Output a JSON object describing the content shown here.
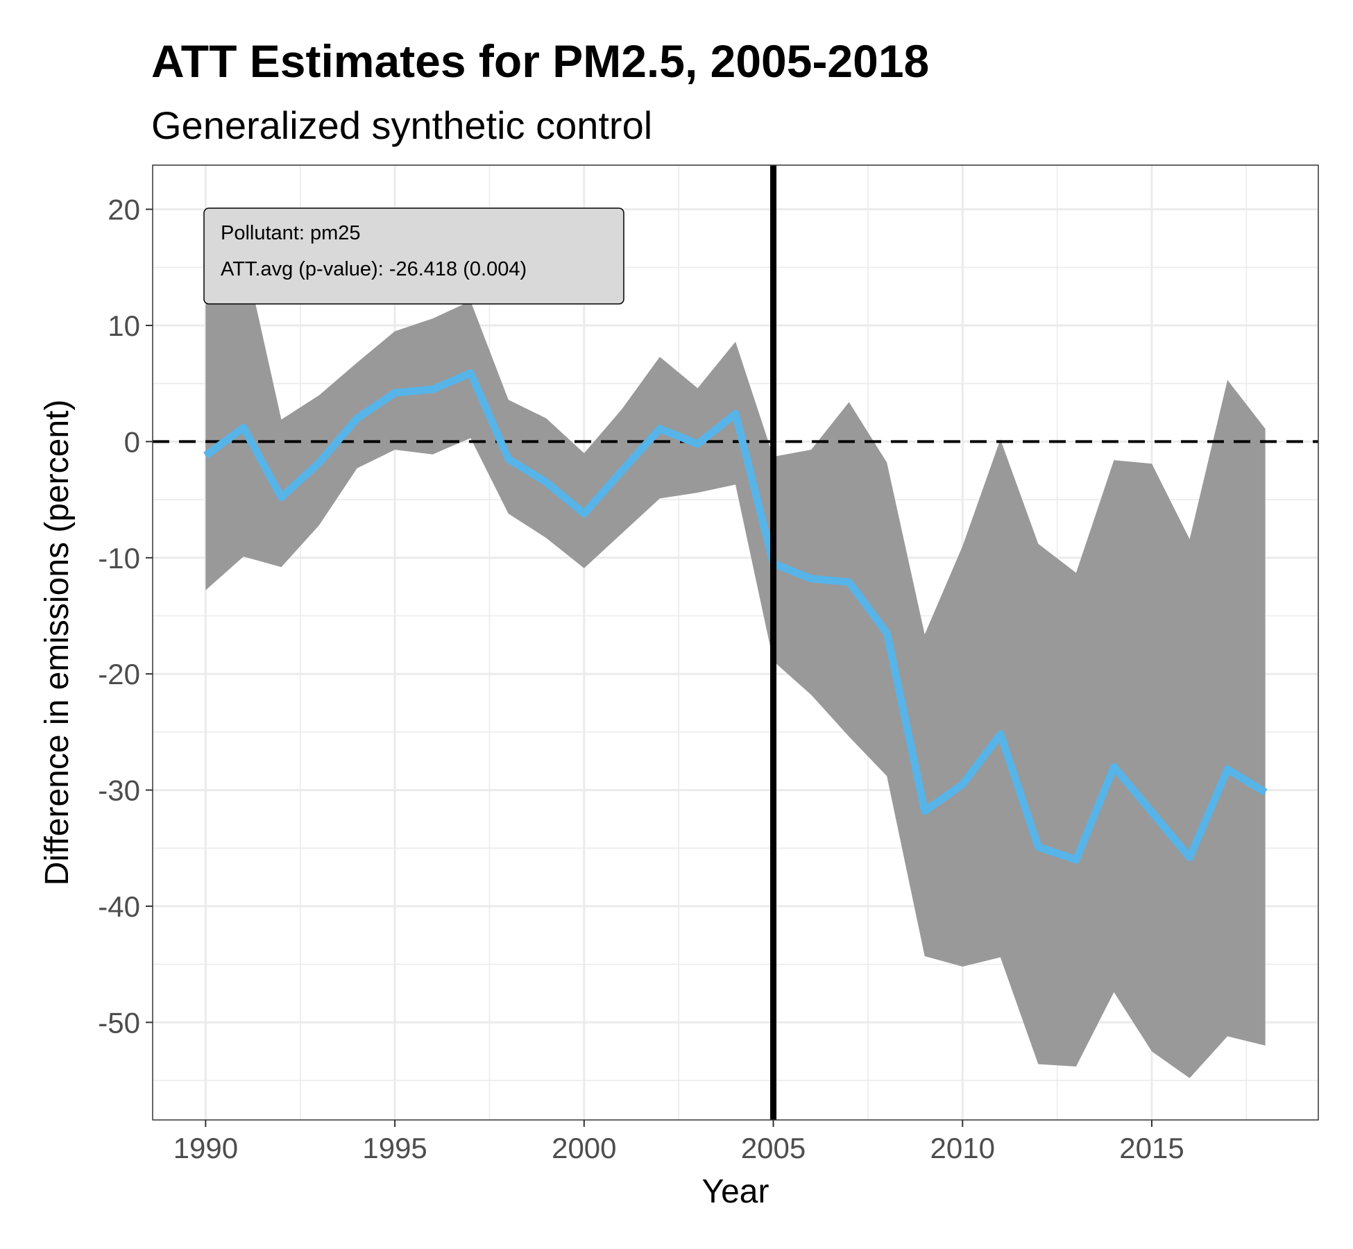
{
  "chart_data": {
    "type": "line",
    "title": "ATT Estimates for PM2.5, 2005-2018",
    "subtitle": "Generalized synthetic control",
    "xlabel": "Year",
    "ylabel": "Difference in emissions (percent)",
    "xlim": [
      1988.6,
      2019.4
    ],
    "ylim": [
      -58.4,
      23.8
    ],
    "x_ticks": [
      1990,
      1995,
      2000,
      2005,
      2010,
      2015
    ],
    "y_ticks": [
      20,
      10,
      0,
      -10,
      -20,
      -30,
      -40,
      -50
    ],
    "grid": true,
    "treatment_year": 2005,
    "reference_line": 0,
    "x": [
      1990,
      1991,
      1992,
      1993,
      1994,
      1995,
      1996,
      1997,
      1998,
      1999,
      2000,
      2001,
      2002,
      2003,
      2004,
      2005,
      2006,
      2007,
      2008,
      2009,
      2010,
      2011,
      2012,
      2013,
      2014,
      2015,
      2016,
      2017,
      2018
    ],
    "series": [
      {
        "values": [
          -1.2,
          1.2,
          -4.8,
          -1.8,
          2.0,
          4.2,
          4.5,
          5.9,
          -1.5,
          -3.5,
          -6.2,
          -2.5,
          1.1,
          -0.2,
          2.4,
          -10.5,
          -11.8,
          -12.1,
          -16.5,
          -31.8,
          -29.5,
          -25.2,
          -34.9,
          -36.0,
          -28.0,
          -31.9,
          -35.8,
          -28.2,
          -30.2
        ],
        "color": "#56b4e9"
      }
    ],
    "band": {
      "upper": [
        11.8,
        16.5,
        1.9,
        4.0,
        6.8,
        9.5,
        10.6,
        12.1,
        3.6,
        2.0,
        -1.0,
        2.8,
        7.3,
        4.6,
        8.6,
        -1.3,
        -0.7,
        3.4,
        -1.8,
        -16.6,
        -9.0,
        0.2,
        -8.8,
        -11.3,
        -1.6,
        -1.9,
        -8.4,
        5.3,
        1.1
      ],
      "lower": [
        -12.8,
        -9.9,
        -10.8,
        -7.2,
        -2.3,
        -0.7,
        -1.1,
        0.3,
        -6.2,
        -8.3,
        -10.9,
        -7.9,
        -4.9,
        -4.4,
        -3.7,
        -18.9,
        -21.8,
        -25.4,
        -28.8,
        -44.3,
        -45.2,
        -44.4,
        -53.6,
        -53.8,
        -47.4,
        -52.5,
        -54.8,
        -51.2,
        -52.0
      ],
      "color": "#999999"
    },
    "annotation": {
      "line1": "Pollutant: pm25",
      "line2": "ATT.avg (p-value): -26.418 (0.004)",
      "background": "#d9d9d9"
    }
  }
}
